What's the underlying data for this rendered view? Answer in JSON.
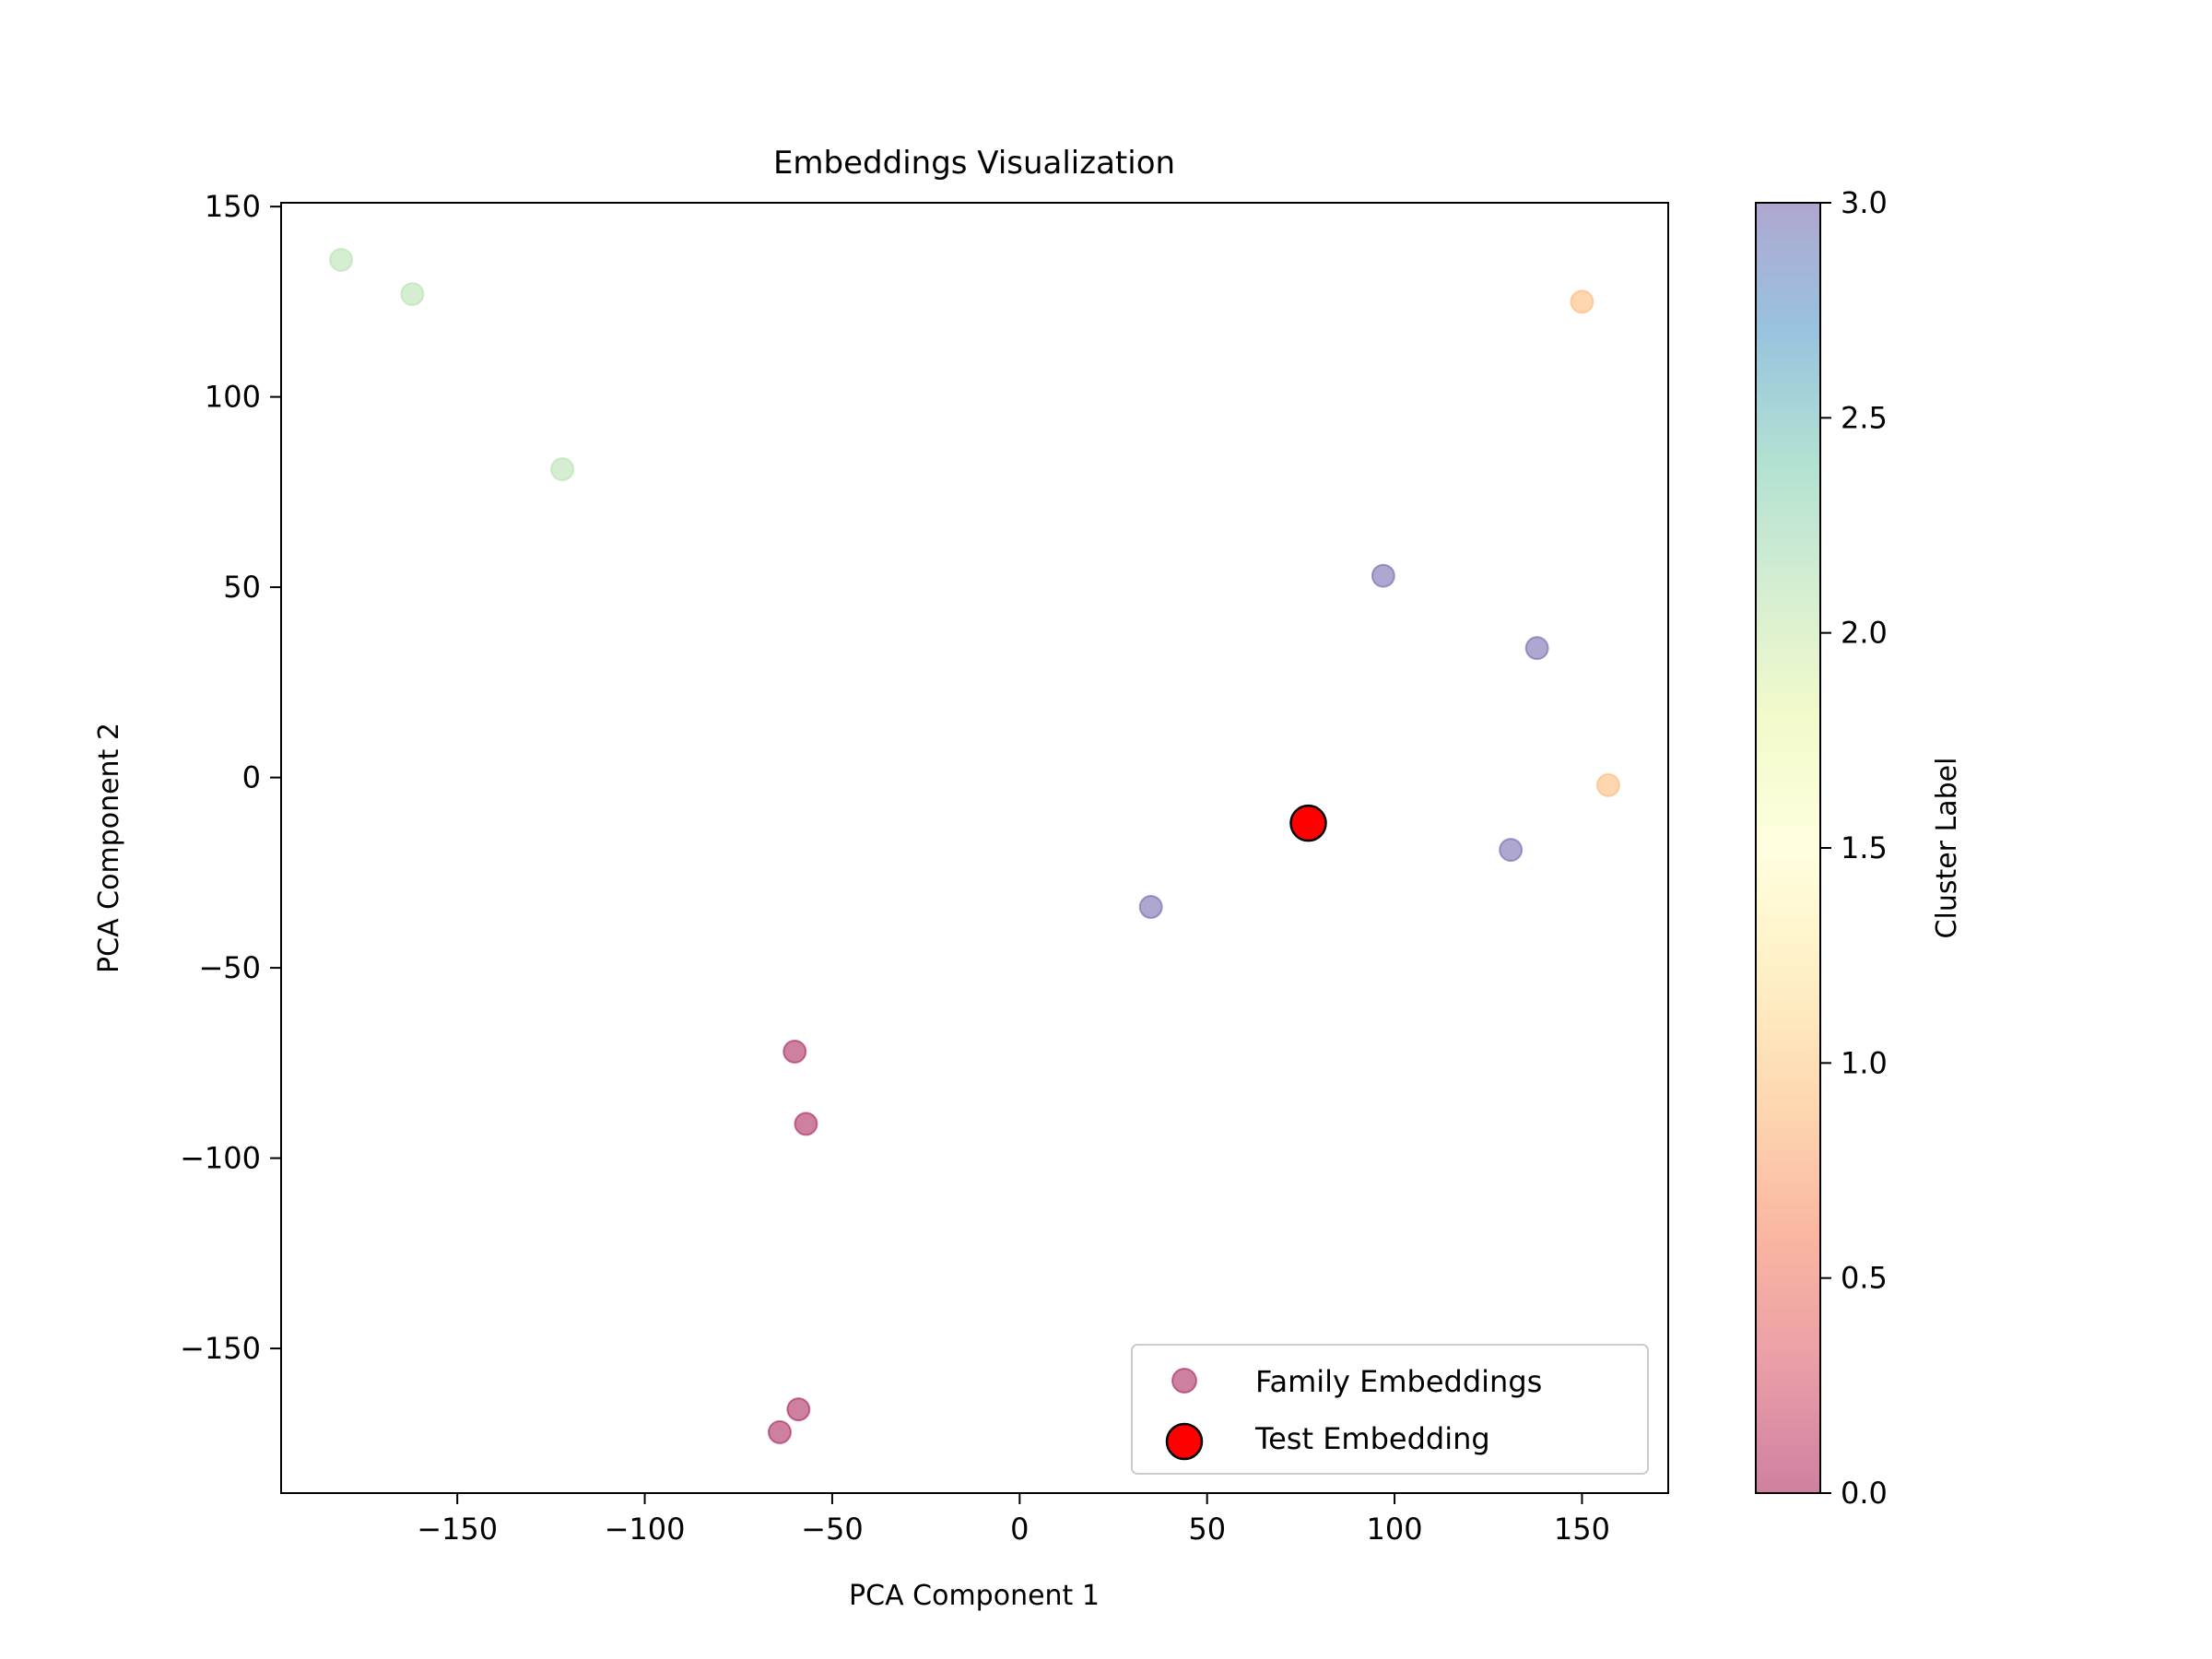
{
  "chart_data": {
    "type": "scatter",
    "title": "Embeddings Visualization",
    "xlabel": "PCA Component 1",
    "ylabel": "PCA Component 2",
    "xlim": [
      -197,
      173
    ],
    "ylim": [
      -188,
      151
    ],
    "x_ticks": [
      -150,
      -100,
      -50,
      0,
      50,
      100,
      150
    ],
    "x_tick_labels": [
      "−150",
      "−100",
      "−50",
      "0",
      "50",
      "100",
      "150"
    ],
    "y_ticks": [
      150,
      100,
      50,
      0,
      -50,
      -100,
      -150
    ],
    "y_tick_labels": [
      "150",
      "100",
      "50",
      "0",
      "−50",
      "−100",
      "−150"
    ],
    "grid": false,
    "legend_position": "lower-right",
    "series": [
      {
        "name": "Family Embeddings",
        "marker": "circle",
        "alpha": 0.5,
        "points": [
          {
            "x": -181,
            "y": 136,
            "cluster": 2
          },
          {
            "x": -162,
            "y": 127,
            "cluster": 2
          },
          {
            "x": -122,
            "y": 81,
            "cluster": 2
          },
          {
            "x": 150,
            "y": 125,
            "cluster": 1
          },
          {
            "x": 157,
            "y": -2,
            "cluster": 1
          },
          {
            "x": 97,
            "y": 53,
            "cluster": 3
          },
          {
            "x": 138,
            "y": 34,
            "cluster": 3
          },
          {
            "x": 131,
            "y": -19,
            "cluster": 3
          },
          {
            "x": 35,
            "y": -34,
            "cluster": 3
          },
          {
            "x": -60,
            "y": -72,
            "cluster": 0
          },
          {
            "x": -57,
            "y": -91,
            "cluster": 0
          },
          {
            "x": -59,
            "y": -166,
            "cluster": 0
          },
          {
            "x": -64,
            "y": -172,
            "cluster": 0
          }
        ]
      },
      {
        "name": "Test Embedding",
        "marker": "circle",
        "color": "#ff0000",
        "edgecolor": "#000000",
        "points": [
          {
            "x": 77,
            "y": -12
          }
        ]
      }
    ],
    "cluster_colors": {
      "0": "#9e0142",
      "1": "#fdae61",
      "2": "#abdda4",
      "3": "#5e4fa2"
    },
    "colorbar": {
      "label": "Cluster Label",
      "min": 0.0,
      "max": 3.0,
      "ticks": [
        0.0,
        0.5,
        1.0,
        1.5,
        2.0,
        2.5,
        3.0
      ],
      "tick_labels": [
        "0.0",
        "0.5",
        "1.0",
        "1.5",
        "2.0",
        "2.5",
        "3.0"
      ],
      "colormap": "Spectral",
      "alpha": 0.5,
      "stops": [
        "#9e0142",
        "#d53e4f",
        "#f46d43",
        "#fdae61",
        "#fee08b",
        "#ffffbf",
        "#e6f598",
        "#abdda4",
        "#66c2a5",
        "#3288bd",
        "#5e4fa2"
      ]
    }
  }
}
